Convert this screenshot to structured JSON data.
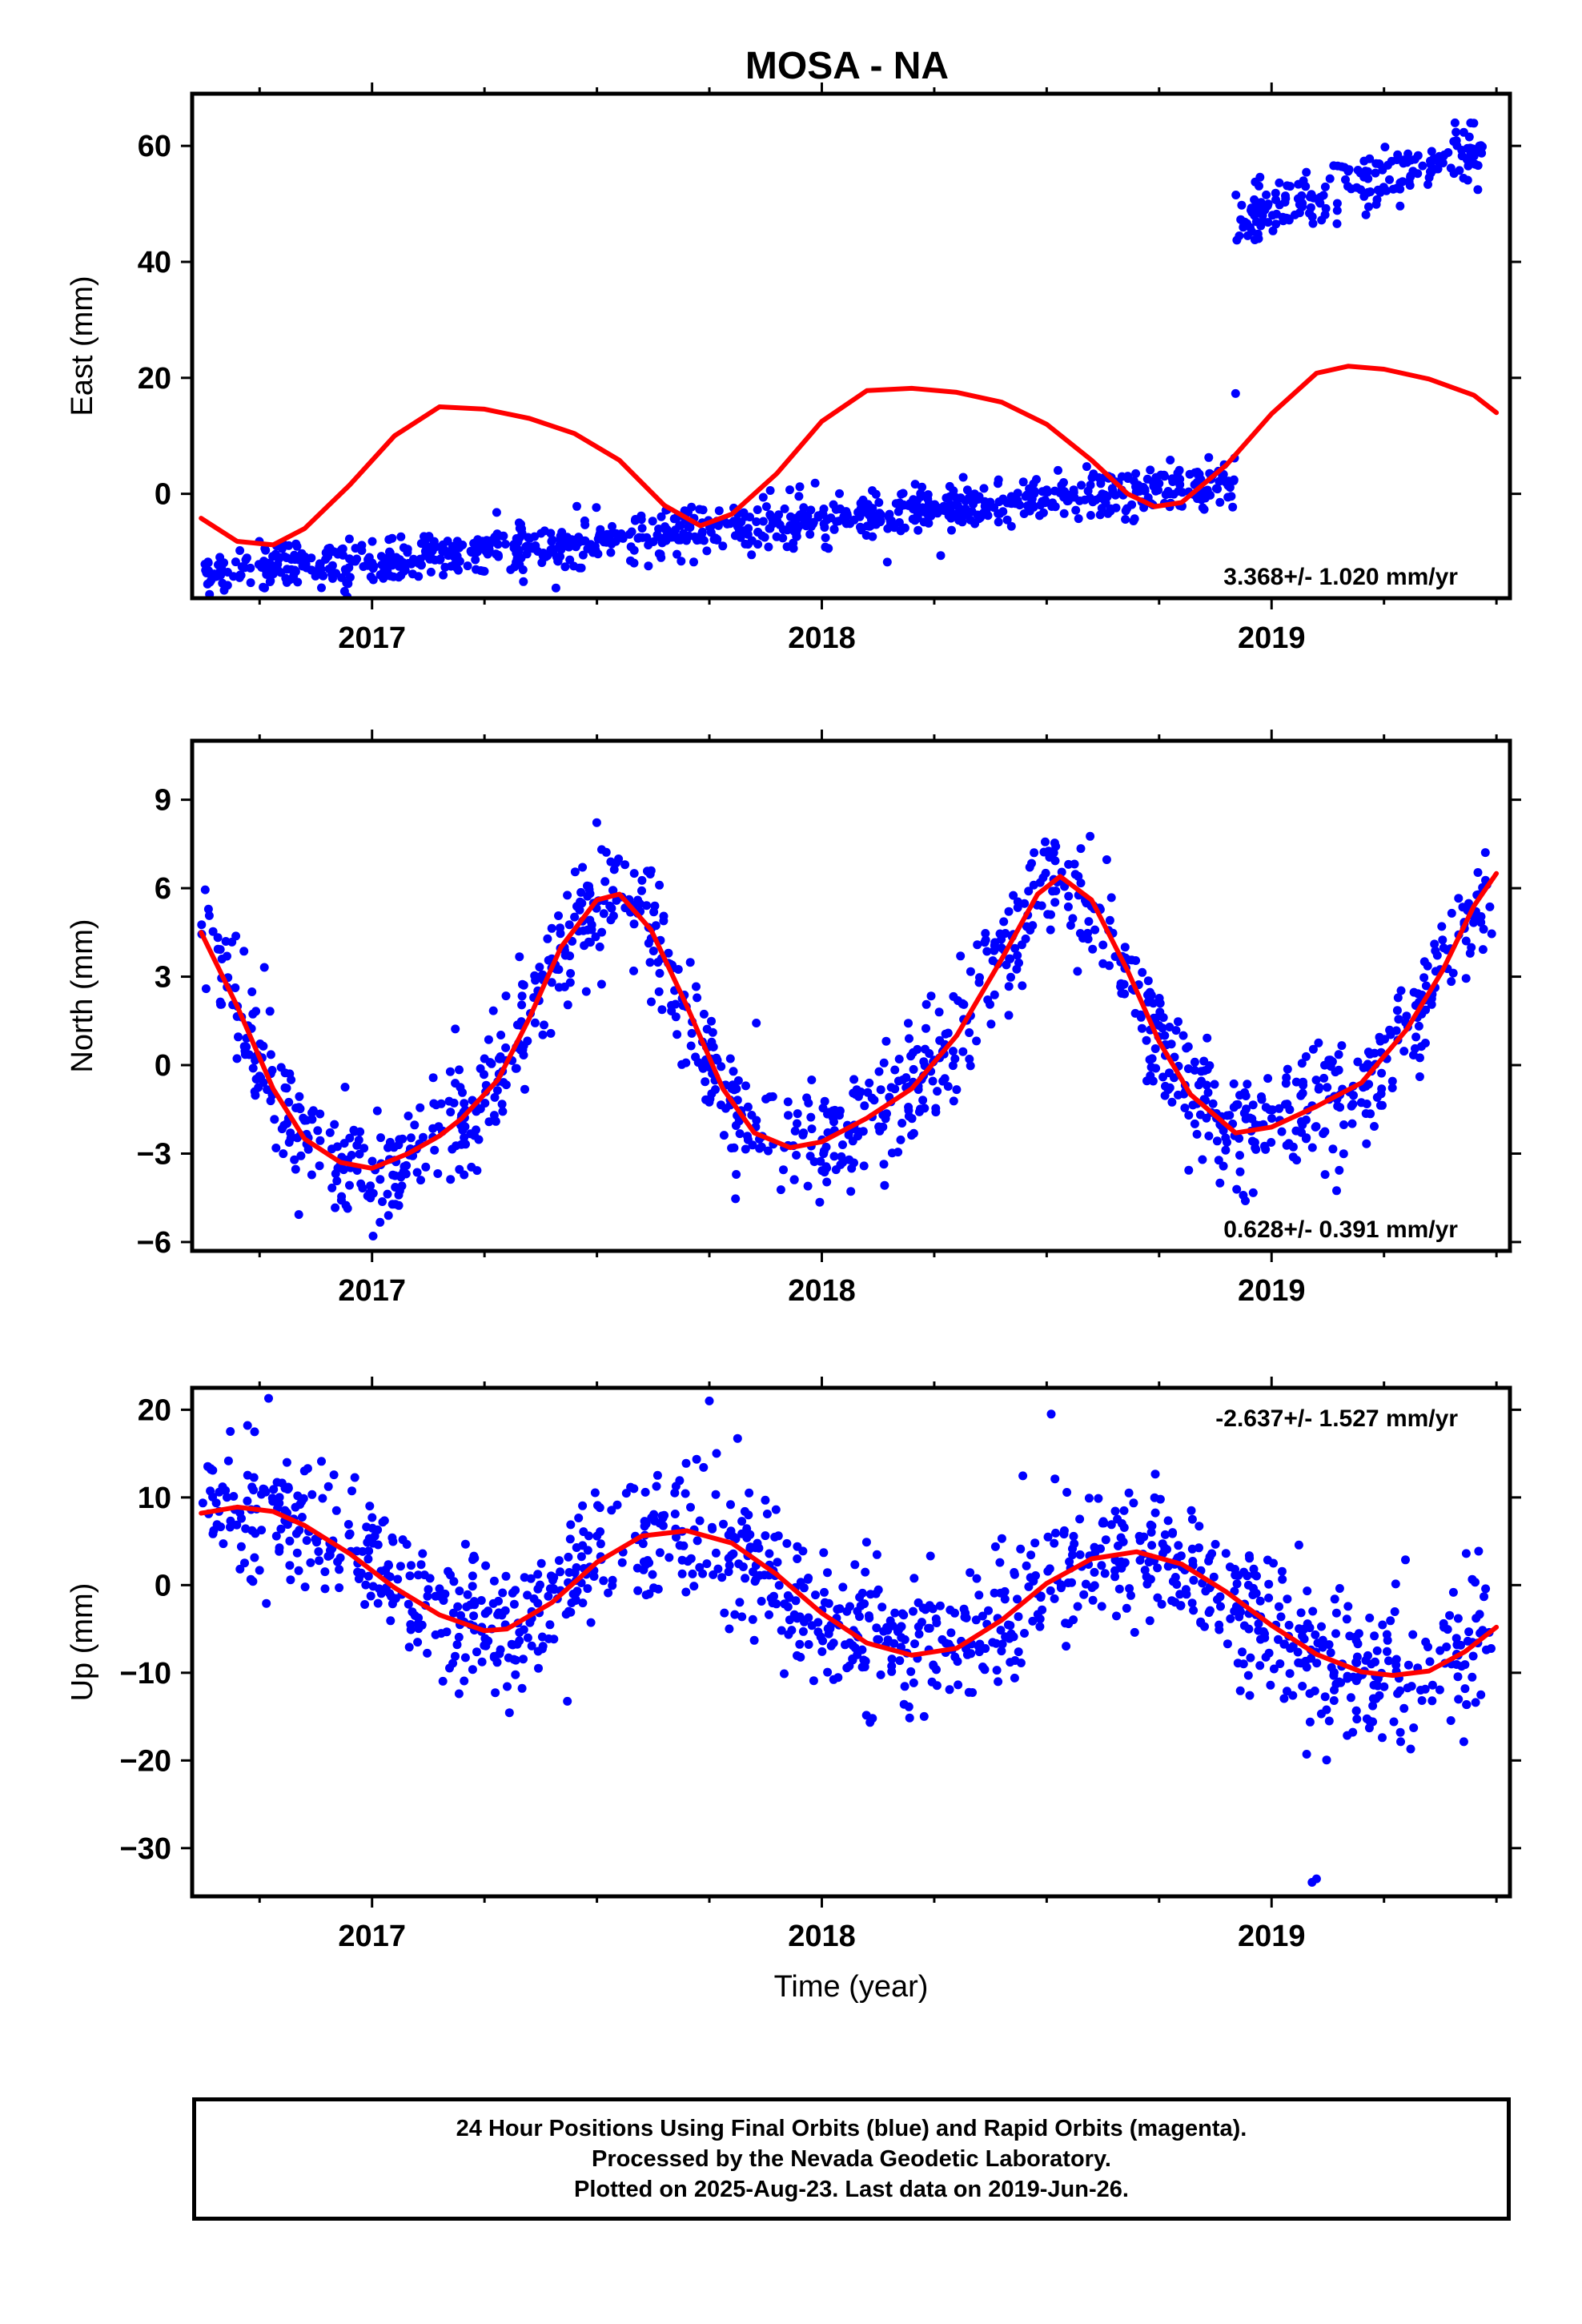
{
  "title": "MOSA - NA",
  "footer": {
    "line1": "24 Hour Positions Using Final Orbits (blue) and Rapid Orbits (magenta).",
    "line2": "Processed by the Nevada Geodetic Laboratory.",
    "line3": "Plotted on 2025-Aug-23. Last data on 2019-Jun-26."
  },
  "colors": {
    "points": "#0000ff",
    "model": "#ff0000",
    "axes": "#000000"
  },
  "chart_data": [
    {
      "type": "scatter",
      "name": "east",
      "ylabel": "East (mm)",
      "xlabel": "",
      "xlim": [
        2016.6,
        2019.53
      ],
      "ylim": [
        -18,
        69
      ],
      "xticks": [
        2017,
        2018,
        2019
      ],
      "yticks": [
        0,
        20,
        40,
        60
      ],
      "rate_label": "3.368+/- 1.020 mm/yr",
      "rate_position": "bottom-right",
      "segments": [
        {
          "x0": 2016.62,
          "x1": 2018.92,
          "y0": -14,
          "y1": 2,
          "noise": 2.0,
          "n": 950
        },
        {
          "x0": 2018.92,
          "x1": 2019.49,
          "y0": 47,
          "y1": 60,
          "noise": 2.6,
          "n": 200
        }
      ],
      "outliers": [
        {
          "x": 2018.92,
          "y": 17.3
        }
      ],
      "model": [
        [
          2016.62,
          -4.2
        ],
        [
          2016.7,
          -8.2
        ],
        [
          2016.78,
          -8.8
        ],
        [
          2016.85,
          -6.0
        ],
        [
          2016.95,
          1.5
        ],
        [
          2017.05,
          10.0
        ],
        [
          2017.15,
          15.0
        ],
        [
          2017.25,
          14.6
        ],
        [
          2017.35,
          13.0
        ],
        [
          2017.45,
          10.4
        ],
        [
          2017.55,
          5.8
        ],
        [
          2017.65,
          -2.0
        ],
        [
          2017.73,
          -5.5
        ],
        [
          2017.8,
          -3.5
        ],
        [
          2017.9,
          3.5
        ],
        [
          2018.0,
          12.5
        ],
        [
          2018.1,
          17.8
        ],
        [
          2018.2,
          18.2
        ],
        [
          2018.3,
          17.5
        ],
        [
          2018.4,
          15.8
        ],
        [
          2018.5,
          12.0
        ],
        [
          2018.6,
          5.8
        ],
        [
          2018.68,
          0.0
        ],
        [
          2018.74,
          -2.2
        ],
        [
          2018.8,
          -1.5
        ],
        [
          2018.9,
          5.0
        ],
        [
          2019.0,
          13.8
        ],
        [
          2019.1,
          20.8
        ],
        [
          2019.17,
          22.0
        ],
        [
          2019.25,
          21.5
        ],
        [
          2019.35,
          19.8
        ],
        [
          2019.45,
          17.0
        ],
        [
          2019.5,
          14.0
        ]
      ]
    },
    {
      "type": "scatter",
      "name": "north",
      "ylabel": "North (mm)",
      "xlabel": "",
      "xlim": [
        2016.6,
        2019.53
      ],
      "ylim": [
        -6.3,
        11
      ],
      "xticks": [
        2017,
        2018,
        2019
      ],
      "yticks": [
        -6,
        -3,
        0,
        3,
        6,
        9
      ],
      "rate_label": "0.628+/- 0.391 mm/yr",
      "rate_position": "bottom-right",
      "noise": 1.0,
      "n": 1150,
      "x_range": [
        2016.62,
        2019.49
      ],
      "model": [
        [
          2016.62,
          4.5
        ],
        [
          2016.7,
          2.0
        ],
        [
          2016.78,
          -0.8
        ],
        [
          2016.85,
          -2.5
        ],
        [
          2016.93,
          -3.3
        ],
        [
          2017.0,
          -3.5
        ],
        [
          2017.08,
          -3.0
        ],
        [
          2017.15,
          -2.4
        ],
        [
          2017.2,
          -1.8
        ],
        [
          2017.28,
          -0.5
        ],
        [
          2017.35,
          1.6
        ],
        [
          2017.42,
          4.0
        ],
        [
          2017.5,
          5.6
        ],
        [
          2017.55,
          5.8
        ],
        [
          2017.62,
          4.6
        ],
        [
          2017.7,
          2.0
        ],
        [
          2017.78,
          -0.8
        ],
        [
          2017.85,
          -2.3
        ],
        [
          2017.93,
          -2.8
        ],
        [
          2018.0,
          -2.6
        ],
        [
          2018.1,
          -1.8
        ],
        [
          2018.2,
          -0.8
        ],
        [
          2018.3,
          1.0
        ],
        [
          2018.4,
          3.6
        ],
        [
          2018.48,
          5.8
        ],
        [
          2018.53,
          6.4
        ],
        [
          2018.6,
          5.6
        ],
        [
          2018.68,
          3.2
        ],
        [
          2018.75,
          0.8
        ],
        [
          2018.82,
          -1.0
        ],
        [
          2018.92,
          -2.3
        ],
        [
          2019.0,
          -2.1
        ],
        [
          2019.1,
          -1.4
        ],
        [
          2019.2,
          -0.6
        ],
        [
          2019.3,
          1.2
        ],
        [
          2019.38,
          3.2
        ],
        [
          2019.45,
          5.4
        ],
        [
          2019.5,
          6.5
        ]
      ]
    },
    {
      "type": "scatter",
      "name": "up",
      "ylabel": "Up (mm)",
      "xlabel": "Time (year)",
      "xlim": [
        2016.6,
        2019.53
      ],
      "ylim": [
        -35.5,
        22.5
      ],
      "xticks": [
        2017,
        2018,
        2019
      ],
      "yticks": [
        -30,
        -20,
        -10,
        0,
        10,
        20
      ],
      "rate_label": "-2.637+/- 1.527 mm/yr",
      "rate_position": "top-right",
      "noise": 4.0,
      "n": 1150,
      "x_range": [
        2016.62,
        2019.49
      ],
      "outliers": [
        {
          "x": 2019.09,
          "y": -33.9
        },
        {
          "x": 2019.1,
          "y": -33.5
        },
        {
          "x": 2018.51,
          "y": 19.5
        },
        {
          "x": 2017.75,
          "y": 21
        },
        {
          "x": 2016.77,
          "y": 21.3
        }
      ],
      "model": [
        [
          2016.62,
          8.2
        ],
        [
          2016.7,
          8.9
        ],
        [
          2016.78,
          8.4
        ],
        [
          2016.85,
          6.8
        ],
        [
          2016.95,
          3.6
        ],
        [
          2017.05,
          -0.3
        ],
        [
          2017.15,
          -3.4
        ],
        [
          2017.25,
          -5.2
        ],
        [
          2017.3,
          -5.0
        ],
        [
          2017.4,
          -2.0
        ],
        [
          2017.5,
          2.6
        ],
        [
          2017.6,
          5.6
        ],
        [
          2017.7,
          6.2
        ],
        [
          2017.8,
          4.8
        ],
        [
          2017.9,
          1.2
        ],
        [
          2018.0,
          -3.2
        ],
        [
          2018.1,
          -6.6
        ],
        [
          2018.2,
          -8.0
        ],
        [
          2018.3,
          -7.2
        ],
        [
          2018.4,
          -4.0
        ],
        [
          2018.5,
          0.2
        ],
        [
          2018.6,
          3.0
        ],
        [
          2018.7,
          3.8
        ],
        [
          2018.8,
          2.4
        ],
        [
          2018.9,
          -0.8
        ],
        [
          2019.0,
          -4.6
        ],
        [
          2019.1,
          -7.9
        ],
        [
          2019.2,
          -9.9
        ],
        [
          2019.27,
          -10.3
        ],
        [
          2019.35,
          -9.8
        ],
        [
          2019.43,
          -7.6
        ],
        [
          2019.5,
          -4.8
        ]
      ]
    }
  ]
}
